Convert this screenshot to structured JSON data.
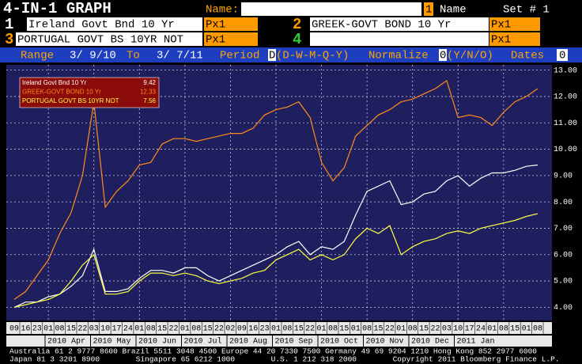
{
  "header": {
    "title": "4-IN-1 GRAPH",
    "name_label": "Name:",
    "set_number": "1",
    "name_button": "Name",
    "set_label": "Set # 1"
  },
  "securities": [
    {
      "number": "1",
      "name": "Ireland Govt Bnd 10 Yr",
      "field": "Px1"
    },
    {
      "number": "2",
      "name": "GREEK-GOVT BOND 10 Yr",
      "field": "Px1"
    },
    {
      "number": "3",
      "name": "PORTUGAL GOVT BS 10YR NOT",
      "field": "Px1"
    },
    {
      "number": "4",
      "field": "Px1"
    }
  ],
  "settings": {
    "range_label": "Range",
    "start": "3/ 9/10",
    "to_label": "To",
    "end": "3/ 7/11",
    "period_label": "Period",
    "period": "D",
    "period_options": "(D-W-M-Q-Y)",
    "normalize_label": "Normalize",
    "normalize": "0",
    "normalize_options": "(Y/N/O)",
    "dates_label": "Dates",
    "dates": "0"
  },
  "chart_data": {
    "type": "line",
    "categories": [
      "09",
      "16",
      "23",
      "01",
      "08",
      "15",
      "22",
      "03",
      "10",
      "17",
      "24",
      "01",
      "08",
      "15",
      "22",
      "01",
      "08",
      "15",
      "22",
      "02",
      "09",
      "16",
      "23",
      "01",
      "08",
      "15",
      "22",
      "01",
      "08",
      "15",
      "01",
      "08",
      "15",
      "22",
      "01",
      "08",
      "15",
      "22",
      "03",
      "10",
      "17",
      "24",
      "01",
      "08",
      "15",
      "01",
      "08"
    ],
    "x_groups": [
      "2010 Apr",
      "2010 May",
      "2010 Jun",
      "2010 Jul",
      "2010 Aug",
      "2010 Sep",
      "2010 Oct",
      "2010 Nov",
      "2010 Dec",
      "2011 Jan"
    ],
    "series": [
      {
        "name": "Ireland Govt Bnd 10 Yr",
        "color": "#ffffff",
        "last": 9.42,
        "values": [
          4.0,
          4.2,
          4.2,
          4.4,
          4.5,
          4.8,
          5.2,
          6.2,
          4.6,
          4.6,
          4.7,
          5.1,
          5.4,
          5.4,
          5.3,
          5.5,
          5.5,
          5.2,
          5.0,
          5.2,
          5.4,
          5.6,
          5.8,
          6.0,
          6.3,
          6.5,
          6.0,
          6.3,
          6.2,
          6.5,
          7.5,
          8.4,
          8.6,
          8.8,
          7.9,
          8.0,
          8.3,
          8.4,
          8.8,
          9.0,
          8.6,
          8.9,
          9.1,
          9.1,
          9.2,
          9.35,
          9.4
        ]
      },
      {
        "name": "GREEK-GOVT BOND 10 Yr",
        "color": "#ff8c1a",
        "last": 12.33,
        "values": [
          4.3,
          4.6,
          5.2,
          5.8,
          6.8,
          7.6,
          9.0,
          11.8,
          7.8,
          8.4,
          8.8,
          9.4,
          9.5,
          10.2,
          10.4,
          10.4,
          10.3,
          10.4,
          10.5,
          10.6,
          10.6,
          10.8,
          11.3,
          11.5,
          11.6,
          11.8,
          11.2,
          9.5,
          8.8,
          9.3,
          10.5,
          10.9,
          11.3,
          11.5,
          11.8,
          11.9,
          12.1,
          12.3,
          12.6,
          11.2,
          11.3,
          11.2,
          10.9,
          11.4,
          11.8,
          12.0,
          12.3
        ]
      },
      {
        "name": "PORTUGAL GOVT BS 10YR NOT",
        "color": "#ffff40",
        "last": 7.56,
        "values": [
          4.0,
          4.1,
          4.2,
          4.3,
          4.5,
          5.0,
          5.6,
          6.0,
          4.5,
          4.5,
          4.6,
          5.0,
          5.3,
          5.3,
          5.2,
          5.3,
          5.2,
          5.0,
          4.9,
          5.0,
          5.1,
          5.3,
          5.4,
          5.8,
          6.0,
          6.2,
          5.8,
          6.0,
          5.8,
          6.0,
          6.6,
          7.0,
          6.8,
          7.1,
          6.0,
          6.3,
          6.5,
          6.6,
          6.8,
          6.9,
          6.8,
          7.0,
          7.1,
          7.2,
          7.3,
          7.45,
          7.55
        ]
      }
    ],
    "ylim": [
      3.5,
      13.2
    ],
    "yticks": [
      {
        "value": 4,
        "label": "4.00"
      },
      {
        "value": 5,
        "label": "5.00"
      },
      {
        "value": 6,
        "label": "6.00"
      },
      {
        "value": 7,
        "label": "7.00"
      },
      {
        "value": 8,
        "label": "8.00"
      },
      {
        "value": 9,
        "label": "9.00"
      },
      {
        "value": 10,
        "label": "10.00"
      },
      {
        "value": 11,
        "label": "11.00"
      },
      {
        "value": 12,
        "label": "12.00"
      },
      {
        "value": 13,
        "label": "13.00"
      }
    ],
    "grid": true,
    "legend": "upper left"
  },
  "footer": [
    "Australia 61 2 9777 8600 Brazil 5511 3048 4500 Europe 44 20 7330 7500 Germany 49 69 9204 1210 Hong Kong 852 2977 6000",
    "Japan 81 3 3201 8900        Singapore 65 6212 1000        U.S. 1 212 318 2000        Copyright 2011 Bloomberg Finance L.P."
  ]
}
